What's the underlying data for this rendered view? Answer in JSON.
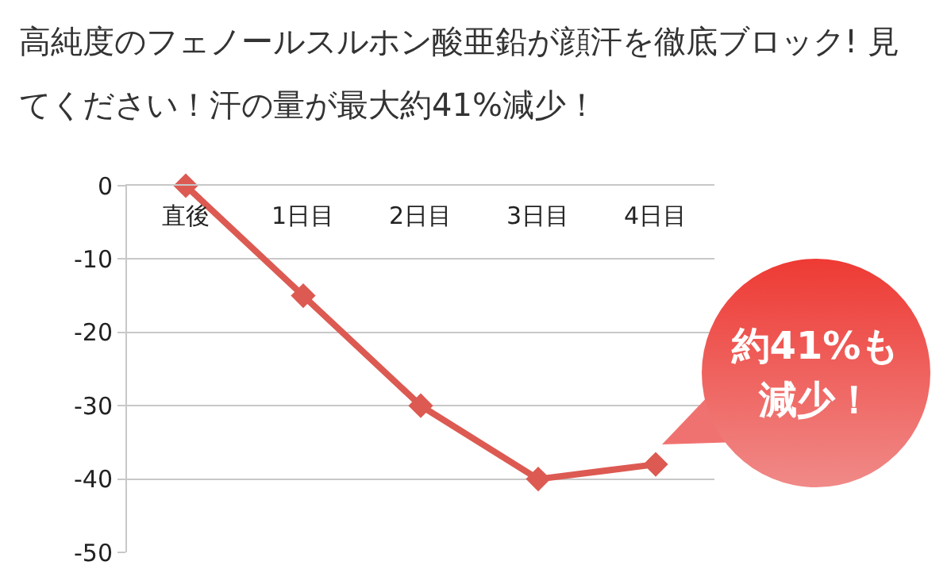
{
  "chart_data": {
    "type": "line",
    "title": "高純度のフェノールスルホン酸亜鉛が顔汗を徹底ブロック! 見てください！汗の量が最大約41%減少！",
    "categories": [
      "直後",
      "1日目",
      "2日目",
      "3日目",
      "4日目"
    ],
    "series": [
      {
        "color": "#dc5a52",
        "values": [
          0,
          -15,
          -30,
          -40,
          -38
        ]
      }
    ],
    "ylim": [
      -50,
      0
    ],
    "yticks": [
      0,
      -10,
      -20,
      -30,
      -40,
      -50
    ],
    "grid": "y",
    "marker": "diamond",
    "line_style": "solid",
    "annotations": [
      "約41%も減少！"
    ]
  }
}
